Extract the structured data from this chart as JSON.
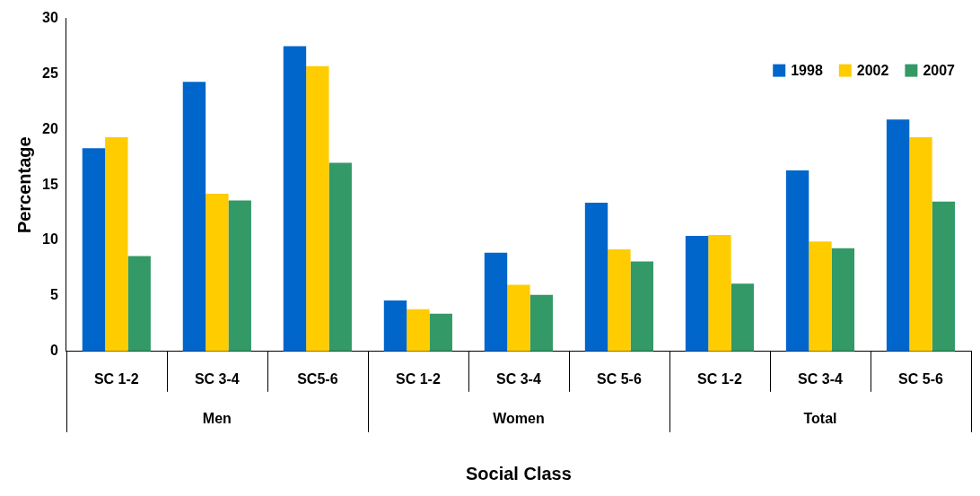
{
  "chart_data": {
    "type": "bar",
    "xlabel": "Social Class",
    "ylabel": "Percentage",
    "categories": [
      "SC 1-2",
      "SC 3-4",
      "SC5-6",
      "SC 1-2",
      "SC 3-4",
      "SC 5-6",
      "SC 1-2",
      "SC 3-4",
      "SC 5-6"
    ],
    "annotations": [
      "Men",
      "Women",
      "Total"
    ],
    "series": [
      {
        "name": "1998",
        "color": "#0066cc",
        "values": [
          18.3,
          24.3,
          27.5,
          4.6,
          8.9,
          13.4,
          10.4,
          16.3,
          20.9
        ]
      },
      {
        "name": "2002",
        "color": "#ffcc00",
        "values": [
          19.3,
          14.2,
          25.7,
          3.8,
          6.0,
          9.2,
          10.5,
          9.9,
          19.3
        ]
      },
      {
        "name": "2007",
        "color": "#339966",
        "values": [
          8.6,
          13.6,
          17.0,
          3.4,
          5.1,
          8.1,
          6.1,
          9.3,
          13.5
        ]
      }
    ],
    "ylim": [
      0,
      30
    ],
    "yticks": [
      0,
      5,
      10,
      15,
      20,
      25,
      30
    ],
    "legend": "top right"
  }
}
